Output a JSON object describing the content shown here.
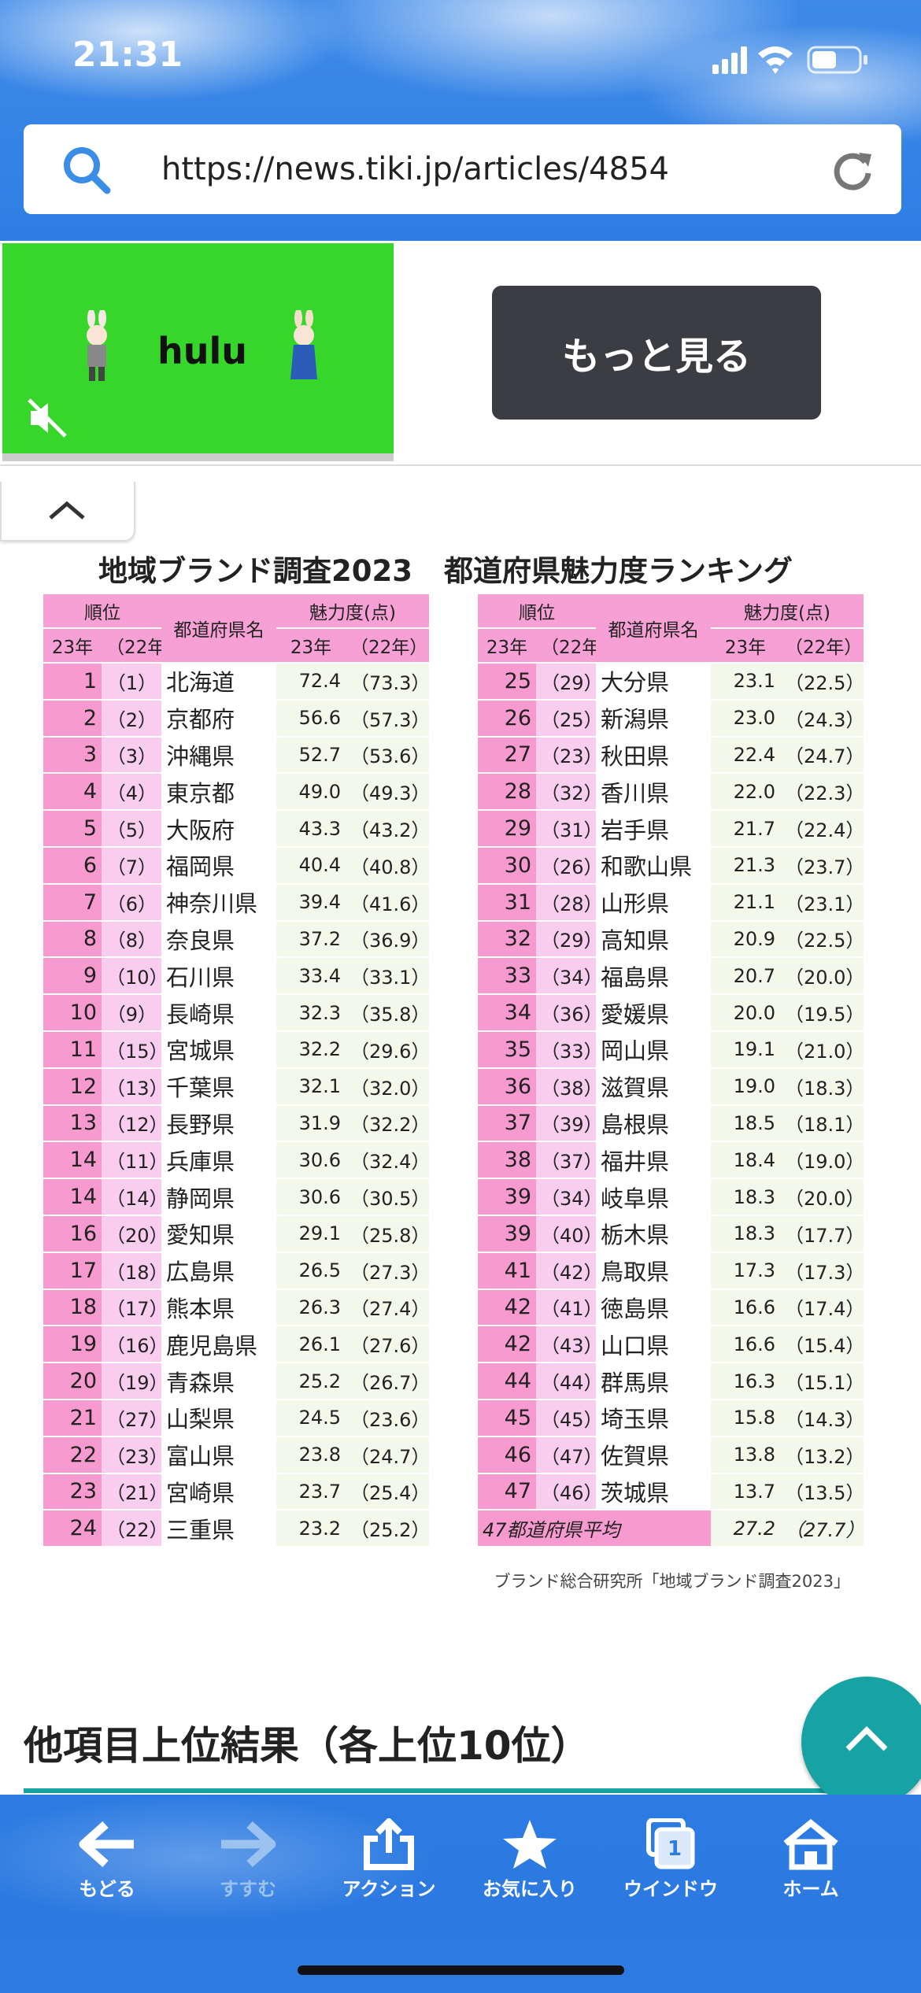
{
  "status_bar": {
    "time": "21:31"
  },
  "address_bar": {
    "url": "https://news.tiki.jp/articles/4854"
  },
  "ad": {
    "brand": "hulu",
    "button": "もっと見る"
  },
  "article": {
    "figure": {
      "title_left": "地域ブランド調査2023",
      "title_right": "都道府県魅力度ランキング",
      "header": {
        "rank": "順位",
        "rank_23": "23年",
        "rank_22": "（22年）",
        "prefecture": "都道府県名",
        "score": "魅力度(点)",
        "score_23": "23年",
        "score_22": "（22年）"
      },
      "tables": [
        {
          "rows": [
            [
              "1",
              "（1）",
              "北海道",
              "72.4",
              "（73.3）"
            ],
            [
              "2",
              "（2）",
              "京都府",
              "56.6",
              "（57.3）"
            ],
            [
              "3",
              "（3）",
              "沖縄県",
              "52.7",
              "（53.6）"
            ],
            [
              "4",
              "（4）",
              "東京都",
              "49.0",
              "（49.3）"
            ],
            [
              "5",
              "（5）",
              "大阪府",
              "43.3",
              "（43.2）"
            ],
            [
              "6",
              "（7）",
              "福岡県",
              "40.4",
              "（40.8）"
            ],
            [
              "7",
              "（6）",
              "神奈川県",
              "39.4",
              "（41.6）"
            ],
            [
              "8",
              "（8）",
              "奈良県",
              "37.2",
              "（36.9）"
            ],
            [
              "9",
              "（10）",
              "石川県",
              "33.4",
              "（33.1）"
            ],
            [
              "10",
              "（9）",
              "長崎県",
              "32.3",
              "（35.8）"
            ],
            [
              "11",
              "（15）",
              "宮城県",
              "32.2",
              "（29.6）"
            ],
            [
              "12",
              "（13）",
              "千葉県",
              "32.1",
              "（32.0）"
            ],
            [
              "13",
              "（12）",
              "長野県",
              "31.9",
              "（32.2）"
            ],
            [
              "14",
              "（11）",
              "兵庫県",
              "30.6",
              "（32.4）"
            ],
            [
              "14",
              "（14）",
              "静岡県",
              "30.6",
              "（30.5）"
            ],
            [
              "16",
              "（20）",
              "愛知県",
              "29.1",
              "（25.8）"
            ],
            [
              "17",
              "（18）",
              "広島県",
              "26.5",
              "（27.3）"
            ],
            [
              "18",
              "（17）",
              "熊本県",
              "26.3",
              "（27.4）"
            ],
            [
              "19",
              "（16）",
              "鹿児島県",
              "26.1",
              "（27.6）"
            ],
            [
              "20",
              "（19）",
              "青森県",
              "25.2",
              "（26.7）"
            ],
            [
              "21",
              "（27）",
              "山梨県",
              "24.5",
              "（23.6）"
            ],
            [
              "22",
              "（23）",
              "富山県",
              "23.8",
              "（24.7）"
            ],
            [
              "23",
              "（21）",
              "宮崎県",
              "23.7",
              "（25.4）"
            ],
            [
              "24",
              "（22）",
              "三重県",
              "23.2",
              "（25.2）"
            ]
          ]
        },
        {
          "rows": [
            [
              "25",
              "（29）",
              "大分県",
              "23.1",
              "（22.5）"
            ],
            [
              "26",
              "（25）",
              "新潟県",
              "23.0",
              "（24.3）"
            ],
            [
              "27",
              "（23）",
              "秋田県",
              "22.4",
              "（24.7）"
            ],
            [
              "28",
              "（32）",
              "香川県",
              "22.0",
              "（22.3）"
            ],
            [
              "29",
              "（31）",
              "岩手県",
              "21.7",
              "（22.4）"
            ],
            [
              "30",
              "（26）",
              "和歌山県",
              "21.3",
              "（23.7）"
            ],
            [
              "31",
              "（28）",
              "山形県",
              "21.1",
              "（23.1）"
            ],
            [
              "32",
              "（29）",
              "高知県",
              "20.9",
              "（22.5）"
            ],
            [
              "33",
              "（34）",
              "福島県",
              "20.7",
              "（20.0）"
            ],
            [
              "34",
              "（36）",
              "愛媛県",
              "20.0",
              "（19.5）"
            ],
            [
              "35",
              "（33）",
              "岡山県",
              "19.1",
              "（21.0）"
            ],
            [
              "36",
              "（38）",
              "滋賀県",
              "19.0",
              "（18.3）"
            ],
            [
              "37",
              "（39）",
              "島根県",
              "18.5",
              "（18.1）"
            ],
            [
              "38",
              "（37）",
              "福井県",
              "18.4",
              "（19.0）"
            ],
            [
              "39",
              "（34）",
              "岐阜県",
              "18.3",
              "（20.0）"
            ],
            [
              "39",
              "（40）",
              "栃木県",
              "18.3",
              "（17.7）"
            ],
            [
              "41",
              "（42）",
              "鳥取県",
              "17.3",
              "（17.3）"
            ],
            [
              "42",
              "（41）",
              "徳島県",
              "16.6",
              "（17.4）"
            ],
            [
              "42",
              "（43）",
              "山口県",
              "16.6",
              "（15.4）"
            ],
            [
              "44",
              "（44）",
              "群馬県",
              "16.3",
              "（15.1）"
            ],
            [
              "45",
              "（45）",
              "埼玉県",
              "15.8",
              "（14.3）"
            ],
            [
              "46",
              "（47）",
              "佐賀県",
              "13.8",
              "（13.2）"
            ],
            [
              "47",
              "（46）",
              "茨城県",
              "13.7",
              "（13.5）"
            ]
          ],
          "average": {
            "label": "47都道府県平均",
            "score_23": "27.2",
            "score_22": "（27.7）"
          }
        }
      ],
      "source": "ブランド総合研究所「地域ブランド調査2023」"
    },
    "heading": "他項目上位結果（各上位10位）"
  },
  "toolbar": {
    "items": [
      {
        "label": "もどる"
      },
      {
        "label": "すすむ"
      },
      {
        "label": "アクション"
      },
      {
        "label": "お気に入り"
      },
      {
        "label": "ウインドウ"
      },
      {
        "label": "ホーム"
      }
    ],
    "window_count": "1"
  }
}
